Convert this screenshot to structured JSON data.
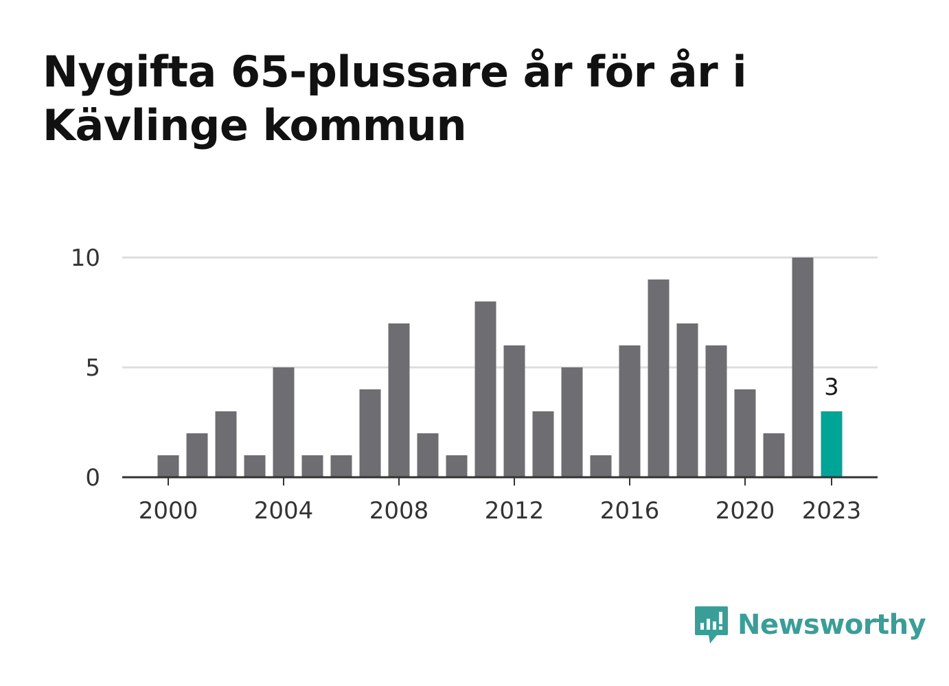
{
  "title": "Nygifta 65-plussare år för år i Kävlinge kommun",
  "brand": {
    "name": "Newsworthy",
    "icon": "newsworthy-logo-icon",
    "color": "#3a9e98"
  },
  "colors": {
    "bar": "#6e6d72",
    "highlight": "#00a598",
    "grid": "#dddddd",
    "axis": "#333333"
  },
  "chart_data": {
    "type": "bar",
    "title": "Nygifta 65-plussare år för år i Kävlinge kommun",
    "xlabel": "",
    "ylabel": "",
    "categories": [
      2000,
      2001,
      2002,
      2003,
      2004,
      2005,
      2006,
      2007,
      2008,
      2009,
      2010,
      2011,
      2012,
      2013,
      2014,
      2015,
      2016,
      2017,
      2018,
      2019,
      2020,
      2021,
      2022,
      2023
    ],
    "values": [
      1,
      2,
      3,
      1,
      5,
      1,
      1,
      4,
      7,
      2,
      1,
      8,
      6,
      3,
      5,
      1,
      6,
      9,
      7,
      6,
      4,
      2,
      10,
      3
    ],
    "ylim": [
      0,
      10
    ],
    "yticks": [
      0,
      5,
      10
    ],
    "xticks": [
      2000,
      2004,
      2008,
      2012,
      2016,
      2020,
      2023
    ],
    "highlight": {
      "category": 2023,
      "label": "3"
    },
    "grid": true,
    "legend": "none"
  }
}
